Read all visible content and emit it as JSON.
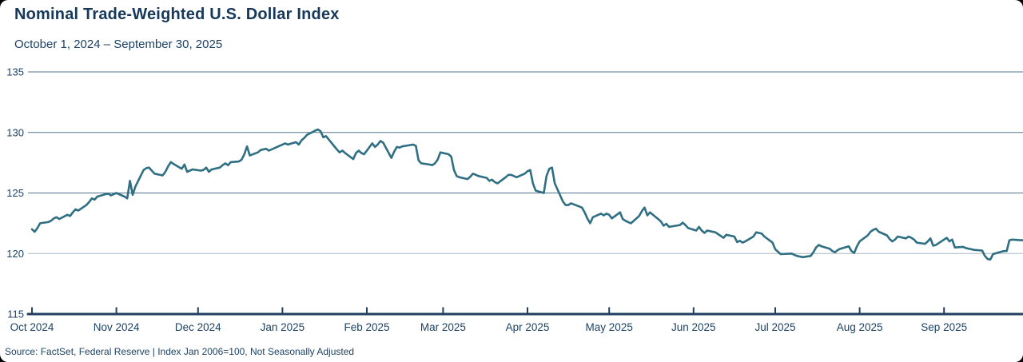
{
  "header": {
    "title": "Nominal Trade-Weighted U.S. Dollar Index",
    "subtitle": "October 1, 2024 – September 30, 2025"
  },
  "footer": {
    "source": "Source: FactSet, Federal Reserve  |  Index Jan 2006=100, Not Seasonally Adjusted"
  },
  "colors": {
    "title": "#16385a",
    "text": "#1d4265",
    "line": "#2f6f83",
    "grid": "#57748f",
    "grid_light": "#a9b7c3",
    "axis": "#1e3f5f",
    "background": "#ffffff"
  },
  "chart_data": {
    "type": "line",
    "title": "Nominal Trade-Weighted U.S. Dollar Index",
    "subtitle": "October 1, 2024 – September 30, 2025",
    "xlabel": "",
    "ylabel": "",
    "ylim": [
      115,
      135
    ],
    "yticks": [
      135,
      130,
      125,
      120,
      115
    ],
    "grid": "horizontal",
    "legend": "none",
    "x_start": "2024-10-01",
    "x_end": "2025-09-30",
    "month_ticks": [
      {
        "date": "2024-10-01",
        "label": "Oct 2024"
      },
      {
        "date": "2024-11-01",
        "label": "Nov 2024"
      },
      {
        "date": "2024-12-01",
        "label": "Dec 2024"
      },
      {
        "date": "2025-01-01",
        "label": "Jan 2025"
      },
      {
        "date": "2025-02-01",
        "label": "Feb 2025"
      },
      {
        "date": "2025-03-01",
        "label": "Mar 2025"
      },
      {
        "date": "2025-04-01",
        "label": "Apr 2025"
      },
      {
        "date": "2025-05-01",
        "label": "May 2025"
      },
      {
        "date": "2025-06-01",
        "label": "Jun 2025"
      },
      {
        "date": "2025-07-01",
        "label": "Jul 2025"
      },
      {
        "date": "2025-08-01",
        "label": "Aug 2025"
      },
      {
        "date": "2025-09-01",
        "label": "Sep 2025"
      }
    ],
    "series": [
      {
        "name": "Nominal Trade-Weighted U.S. Dollar Index",
        "points": [
          [
            "2024-10-01",
            122.0
          ],
          [
            "2024-10-02",
            121.8
          ],
          [
            "2024-10-03",
            122.1
          ],
          [
            "2024-10-04",
            122.5
          ],
          [
            "2024-10-07",
            122.6
          ],
          [
            "2024-10-08",
            122.7
          ],
          [
            "2024-10-09",
            122.9
          ],
          [
            "2024-10-10",
            123.0
          ],
          [
            "2024-10-11",
            122.85
          ],
          [
            "2024-10-14",
            123.2
          ],
          [
            "2024-10-15",
            123.1
          ],
          [
            "2024-10-16",
            123.4
          ],
          [
            "2024-10-17",
            123.65
          ],
          [
            "2024-10-18",
            123.55
          ],
          [
            "2024-10-21",
            124.0
          ],
          [
            "2024-10-22",
            124.25
          ],
          [
            "2024-10-23",
            124.55
          ],
          [
            "2024-10-24",
            124.45
          ],
          [
            "2024-10-25",
            124.7
          ],
          [
            "2024-10-28",
            124.9
          ],
          [
            "2024-10-29",
            124.95
          ],
          [
            "2024-10-30",
            124.8
          ],
          [
            "2024-10-31",
            124.9
          ],
          [
            "2024-11-01",
            125.0
          ],
          [
            "2024-11-04",
            124.7
          ],
          [
            "2024-11-05",
            124.55
          ],
          [
            "2024-11-06",
            126.0
          ],
          [
            "2024-11-07",
            124.85
          ],
          [
            "2024-11-08",
            125.55
          ],
          [
            "2024-11-11",
            126.9
          ],
          [
            "2024-11-12",
            127.05
          ],
          [
            "2024-11-13",
            127.1
          ],
          [
            "2024-11-14",
            126.85
          ],
          [
            "2024-11-15",
            126.6
          ],
          [
            "2024-11-18",
            126.45
          ],
          [
            "2024-11-19",
            126.75
          ],
          [
            "2024-11-20",
            127.2
          ],
          [
            "2024-11-21",
            127.55
          ],
          [
            "2024-11-22",
            127.4
          ],
          [
            "2024-11-25",
            127.0
          ],
          [
            "2024-11-26",
            127.35
          ],
          [
            "2024-11-27",
            126.75
          ],
          [
            "2024-11-29",
            126.95
          ],
          [
            "2024-12-02",
            126.85
          ],
          [
            "2024-12-03",
            126.9
          ],
          [
            "2024-12-04",
            127.1
          ],
          [
            "2024-12-05",
            126.75
          ],
          [
            "2024-12-06",
            126.95
          ],
          [
            "2024-12-09",
            127.1
          ],
          [
            "2024-12-10",
            127.3
          ],
          [
            "2024-12-11",
            127.45
          ],
          [
            "2024-12-12",
            127.3
          ],
          [
            "2024-12-13",
            127.55
          ],
          [
            "2024-12-16",
            127.6
          ],
          [
            "2024-12-17",
            127.75
          ],
          [
            "2024-12-18",
            128.2
          ],
          [
            "2024-12-19",
            128.85
          ],
          [
            "2024-12-20",
            128.1
          ],
          [
            "2024-12-23",
            128.35
          ],
          [
            "2024-12-24",
            128.55
          ],
          [
            "2024-12-26",
            128.65
          ],
          [
            "2024-12-27",
            128.5
          ],
          [
            "2024-12-30",
            128.8
          ],
          [
            "2024-12-31",
            128.9
          ],
          [
            "2025-01-02",
            129.1
          ],
          [
            "2025-01-03",
            129.0
          ],
          [
            "2025-01-06",
            129.2
          ],
          [
            "2025-01-07",
            129.0
          ],
          [
            "2025-01-08",
            129.35
          ],
          [
            "2025-01-09",
            129.55
          ],
          [
            "2025-01-10",
            129.8
          ],
          [
            "2025-01-13",
            130.15
          ],
          [
            "2025-01-14",
            130.25
          ],
          [
            "2025-01-15",
            130.1
          ],
          [
            "2025-01-16",
            129.6
          ],
          [
            "2025-01-17",
            129.7
          ],
          [
            "2025-01-21",
            128.6
          ],
          [
            "2025-01-22",
            128.35
          ],
          [
            "2025-01-23",
            128.5
          ],
          [
            "2025-01-24",
            128.3
          ],
          [
            "2025-01-27",
            127.8
          ],
          [
            "2025-01-28",
            128.3
          ],
          [
            "2025-01-29",
            128.5
          ],
          [
            "2025-01-30",
            128.3
          ],
          [
            "2025-01-31",
            128.2
          ],
          [
            "2025-02-03",
            129.1
          ],
          [
            "2025-02-04",
            128.8
          ],
          [
            "2025-02-05",
            129.0
          ],
          [
            "2025-02-06",
            129.3
          ],
          [
            "2025-02-07",
            129.15
          ],
          [
            "2025-02-10",
            127.9
          ],
          [
            "2025-02-11",
            128.4
          ],
          [
            "2025-02-12",
            128.8
          ],
          [
            "2025-02-13",
            128.75
          ],
          [
            "2025-02-14",
            128.85
          ],
          [
            "2025-02-18",
            129.0
          ],
          [
            "2025-02-19",
            128.9
          ],
          [
            "2025-02-20",
            127.7
          ],
          [
            "2025-02-21",
            127.45
          ],
          [
            "2025-02-24",
            127.35
          ],
          [
            "2025-02-25",
            127.3
          ],
          [
            "2025-02-26",
            127.45
          ],
          [
            "2025-02-27",
            127.75
          ],
          [
            "2025-02-28",
            128.35
          ],
          [
            "2025-03-03",
            128.2
          ],
          [
            "2025-03-04",
            128.0
          ],
          [
            "2025-03-05",
            126.9
          ],
          [
            "2025-03-06",
            126.4
          ],
          [
            "2025-03-07",
            126.3
          ],
          [
            "2025-03-10",
            126.15
          ],
          [
            "2025-03-11",
            126.35
          ],
          [
            "2025-03-12",
            126.6
          ],
          [
            "2025-03-13",
            126.5
          ],
          [
            "2025-03-14",
            126.4
          ],
          [
            "2025-03-17",
            126.25
          ],
          [
            "2025-03-18",
            126.0
          ],
          [
            "2025-03-19",
            126.1
          ],
          [
            "2025-03-20",
            125.9
          ],
          [
            "2025-03-21",
            125.8
          ],
          [
            "2025-03-24",
            126.3
          ],
          [
            "2025-03-25",
            126.5
          ],
          [
            "2025-03-26",
            126.5
          ],
          [
            "2025-03-27",
            126.4
          ],
          [
            "2025-03-28",
            126.3
          ],
          [
            "2025-03-31",
            126.6
          ],
          [
            "2025-04-01",
            126.8
          ],
          [
            "2025-04-02",
            126.9
          ],
          [
            "2025-04-03",
            125.8
          ],
          [
            "2025-04-04",
            125.2
          ],
          [
            "2025-04-07",
            125.0
          ],
          [
            "2025-04-08",
            126.4
          ],
          [
            "2025-04-09",
            127.0
          ],
          [
            "2025-04-10",
            127.1
          ],
          [
            "2025-04-11",
            125.8
          ],
          [
            "2025-04-14",
            124.3
          ],
          [
            "2025-04-15",
            124.0
          ],
          [
            "2025-04-16",
            124.0
          ],
          [
            "2025-04-17",
            124.15
          ],
          [
            "2025-04-21",
            123.8
          ],
          [
            "2025-04-22",
            123.4
          ],
          [
            "2025-04-23",
            122.9
          ],
          [
            "2025-04-24",
            122.5
          ],
          [
            "2025-04-25",
            123.0
          ],
          [
            "2025-04-28",
            123.3
          ],
          [
            "2025-04-29",
            123.15
          ],
          [
            "2025-04-30",
            123.3
          ],
          [
            "2025-05-01",
            123.2
          ],
          [
            "2025-05-02",
            122.9
          ],
          [
            "2025-05-05",
            123.4
          ],
          [
            "2025-05-06",
            122.85
          ],
          [
            "2025-05-07",
            122.7
          ],
          [
            "2025-05-08",
            122.6
          ],
          [
            "2025-05-09",
            122.5
          ],
          [
            "2025-05-12",
            123.1
          ],
          [
            "2025-05-13",
            123.5
          ],
          [
            "2025-05-14",
            123.8
          ],
          [
            "2025-05-15",
            123.15
          ],
          [
            "2025-05-16",
            123.4
          ],
          [
            "2025-05-19",
            122.85
          ],
          [
            "2025-05-20",
            122.65
          ],
          [
            "2025-05-21",
            122.3
          ],
          [
            "2025-05-22",
            122.45
          ],
          [
            "2025-05-23",
            122.2
          ],
          [
            "2025-05-27",
            122.35
          ],
          [
            "2025-05-28",
            122.55
          ],
          [
            "2025-05-29",
            122.35
          ],
          [
            "2025-05-30",
            122.1
          ],
          [
            "2025-06-02",
            121.9
          ],
          [
            "2025-06-03",
            122.2
          ],
          [
            "2025-06-04",
            121.9
          ],
          [
            "2025-06-05",
            121.7
          ],
          [
            "2025-06-06",
            121.9
          ],
          [
            "2025-06-09",
            121.75
          ],
          [
            "2025-06-10",
            121.6
          ],
          [
            "2025-06-11",
            121.45
          ],
          [
            "2025-06-12",
            121.3
          ],
          [
            "2025-06-13",
            121.55
          ],
          [
            "2025-06-16",
            121.4
          ],
          [
            "2025-06-17",
            120.95
          ],
          [
            "2025-06-18",
            121.05
          ],
          [
            "2025-06-19",
            120.9
          ],
          [
            "2025-06-20",
            121.0
          ],
          [
            "2025-06-23",
            121.4
          ],
          [
            "2025-06-24",
            121.75
          ],
          [
            "2025-06-25",
            121.7
          ],
          [
            "2025-06-26",
            121.65
          ],
          [
            "2025-06-27",
            121.4
          ],
          [
            "2025-06-30",
            120.9
          ],
          [
            "2025-07-01",
            120.35
          ],
          [
            "2025-07-02",
            120.15
          ],
          [
            "2025-07-03",
            119.95
          ],
          [
            "2025-07-07",
            120.0
          ],
          [
            "2025-07-08",
            119.9
          ],
          [
            "2025-07-09",
            119.8
          ],
          [
            "2025-07-10",
            119.75
          ],
          [
            "2025-07-11",
            119.7
          ],
          [
            "2025-07-14",
            119.8
          ],
          [
            "2025-07-15",
            120.1
          ],
          [
            "2025-07-16",
            120.5
          ],
          [
            "2025-07-17",
            120.7
          ],
          [
            "2025-07-18",
            120.6
          ],
          [
            "2025-07-21",
            120.4
          ],
          [
            "2025-07-22",
            120.2
          ],
          [
            "2025-07-23",
            120.1
          ],
          [
            "2025-07-24",
            120.3
          ],
          [
            "2025-07-25",
            120.4
          ],
          [
            "2025-07-28",
            120.6
          ],
          [
            "2025-07-29",
            120.2
          ],
          [
            "2025-07-30",
            120.05
          ],
          [
            "2025-07-31",
            120.6
          ],
          [
            "2025-08-01",
            121.0
          ],
          [
            "2025-08-04",
            121.5
          ],
          [
            "2025-08-05",
            121.8
          ],
          [
            "2025-08-06",
            121.95
          ],
          [
            "2025-08-07",
            122.05
          ],
          [
            "2025-08-08",
            121.8
          ],
          [
            "2025-08-11",
            121.5
          ],
          [
            "2025-08-12",
            121.2
          ],
          [
            "2025-08-13",
            121.0
          ],
          [
            "2025-08-14",
            121.15
          ],
          [
            "2025-08-15",
            121.4
          ],
          [
            "2025-08-18",
            121.25
          ],
          [
            "2025-08-19",
            121.4
          ],
          [
            "2025-08-20",
            121.3
          ],
          [
            "2025-08-21",
            121.15
          ],
          [
            "2025-08-22",
            120.9
          ],
          [
            "2025-08-25",
            120.8
          ],
          [
            "2025-08-26",
            121.0
          ],
          [
            "2025-08-27",
            121.25
          ],
          [
            "2025-08-28",
            120.65
          ],
          [
            "2025-08-29",
            120.7
          ],
          [
            "2025-09-02",
            121.3
          ],
          [
            "2025-09-03",
            121.0
          ],
          [
            "2025-09-04",
            121.15
          ],
          [
            "2025-09-05",
            120.5
          ],
          [
            "2025-09-08",
            120.55
          ],
          [
            "2025-09-09",
            120.45
          ],
          [
            "2025-09-10",
            120.4
          ],
          [
            "2025-09-11",
            120.35
          ],
          [
            "2025-09-12",
            120.3
          ],
          [
            "2025-09-15",
            120.25
          ],
          [
            "2025-09-16",
            119.8
          ],
          [
            "2025-09-17",
            119.55
          ],
          [
            "2025-09-18",
            119.5
          ],
          [
            "2025-09-19",
            119.95
          ],
          [
            "2025-09-22",
            120.15
          ],
          [
            "2025-09-23",
            120.2
          ],
          [
            "2025-09-24",
            120.2
          ],
          [
            "2025-09-25",
            121.1
          ],
          [
            "2025-09-26",
            121.15
          ],
          [
            "2025-09-29",
            121.1
          ],
          [
            "2025-09-30",
            121.1
          ]
        ]
      }
    ]
  }
}
